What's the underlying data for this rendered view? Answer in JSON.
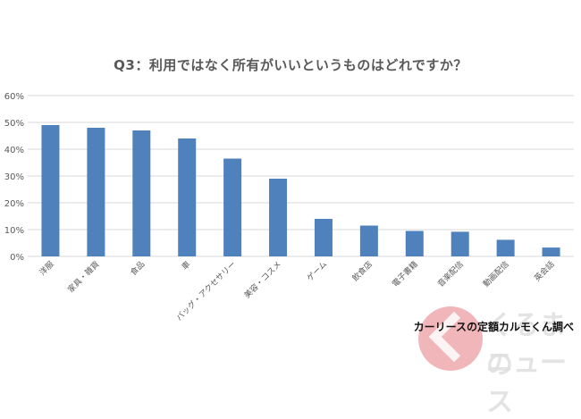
{
  "chart_data": {
    "type": "bar",
    "title": "Q3：利用ではなく所有がいいというものはどれですか？",
    "categories": [
      "洋服",
      "家具・雑貨",
      "食品",
      "車",
      "バッグ・アクセサリー",
      "美容・コスメ",
      "ゲーム",
      "飲食店",
      "電子書籍",
      "音楽配信",
      "動画配信",
      "英会話"
    ],
    "values": [
      49,
      48,
      47,
      44,
      36.5,
      29,
      14,
      11.5,
      9.5,
      9.2,
      6.2,
      3.3
    ],
    "ylim": [
      0,
      60
    ],
    "yticks": [
      "0%",
      "10%",
      "20%",
      "30%",
      "40%",
      "50%",
      "60%"
    ],
    "xlabel": "",
    "ylabel": "",
    "grid": true,
    "legend": "none",
    "bar_color": "#4f81bd",
    "grid_color": "#d9d9d9",
    "label_color": "#595959"
  },
  "source_text": "カーリースの定額カルモくん調べ",
  "logo": {
    "top_text": "くるまの",
    "bottom_text": "ニュース",
    "badge_color": "#e57a82"
  }
}
